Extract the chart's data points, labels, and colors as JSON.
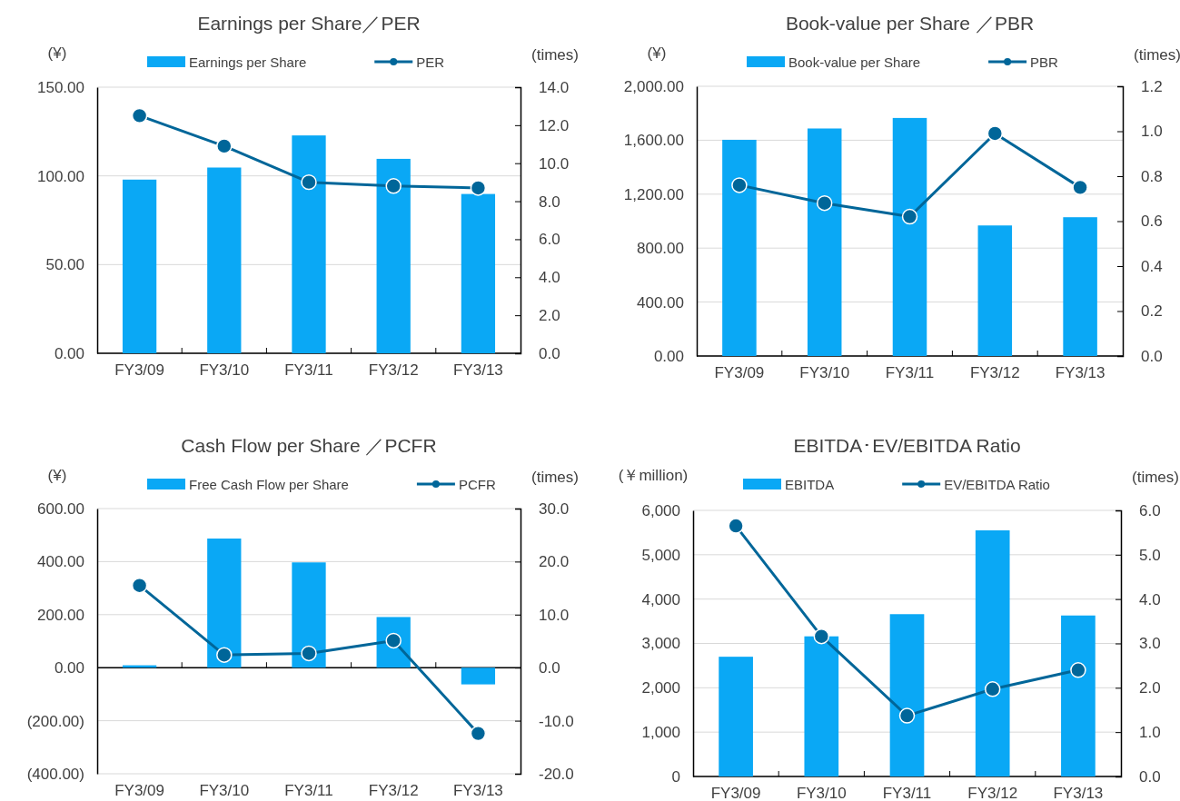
{
  "chart_data": [
    {
      "type": "bar",
      "title": "Earnings per Share／PER",
      "ylabel": "(¥)",
      "y2label": "(times)",
      "categories": [
        "FY3/09",
        "FY3/10",
        "FY3/11",
        "FY3/12",
        "FY3/13"
      ],
      "series": [
        {
          "name": "Earnings per Share",
          "color": "#0aa8f5",
          "values": [
            97.9,
            104.7,
            122.8,
            109.6,
            89.8
          ]
        },
        {
          "name": "PER",
          "type": "line",
          "axis": "y2",
          "color": "#006699",
          "values": [
            12.5,
            10.9,
            9.0,
            8.8,
            8.7
          ]
        }
      ],
      "ylim": [
        0,
        150
      ],
      "yticks": [
        {
          "value": 0,
          "label": "0.00"
        },
        {
          "value": 50,
          "label": "50.00"
        },
        {
          "value": 100,
          "label": "100.00"
        },
        {
          "value": 150,
          "label": "150.00"
        }
      ],
      "y2lim": [
        0,
        14
      ],
      "y2ticks": [
        {
          "value": 0,
          "label": "0.0"
        },
        {
          "value": 2,
          "label": "2.0"
        },
        {
          "value": 4,
          "label": "4.0"
        },
        {
          "value": 6,
          "label": "6.0"
        },
        {
          "value": 8,
          "label": "8.0"
        },
        {
          "value": 10,
          "label": "10.0"
        },
        {
          "value": 12,
          "label": "12.0"
        },
        {
          "value": 14,
          "label": "14.0"
        }
      ],
      "grid": "y",
      "legend": "top",
      "marker": "circle"
    },
    {
      "type": "bar",
      "title": "Book-value per Share ／PBR",
      "ylabel": "(¥)",
      "y2label": "(times)",
      "categories": [
        "FY3/09",
        "FY3/10",
        "FY3/11",
        "FY3/12",
        "FY3/13"
      ],
      "series": [
        {
          "name": "Book-value per Share",
          "color": "#0aa8f5",
          "values": [
            1603,
            1687,
            1765,
            968,
            1029
          ]
        },
        {
          "name": "PBR",
          "type": "line",
          "axis": "y2",
          "color": "#006699",
          "values": [
            0.76,
            0.68,
            0.62,
            0.99,
            0.75
          ]
        }
      ],
      "ylim": [
        0,
        2000
      ],
      "yticks": [
        {
          "value": 0,
          "label": "0.00"
        },
        {
          "value": 400,
          "label": "400.00"
        },
        {
          "value": 800,
          "label": "800.00"
        },
        {
          "value": 1200,
          "label": "1,200.00"
        },
        {
          "value": 1600,
          "label": "1,600.00"
        },
        {
          "value": 2000,
          "label": "2,000.00"
        }
      ],
      "y2lim": [
        0,
        1.2
      ],
      "y2ticks": [
        {
          "value": 0,
          "label": "0.0"
        },
        0.2,
        0.4,
        0.6,
        0.8,
        {
          "value": 1,
          "label": "1.0"
        },
        1.2
      ],
      "grid": "y",
      "legend": "top",
      "marker": "circle"
    },
    {
      "type": "bar",
      "title": "Cash Flow per Share ／PCFR",
      "ylabel": "(¥)",
      "y2label": "(times)",
      "categories": [
        "FY3/09",
        "FY3/10",
        "FY3/11",
        "FY3/12",
        "FY3/13"
      ],
      "series": [
        {
          "name": "Free Cash Flow per Share",
          "color": "#0aa8f5",
          "values": [
            9,
            487,
            397,
            191,
            -63
          ]
        },
        {
          "name": "PCFR",
          "type": "line",
          "axis": "y2",
          "color": "#006699",
          "values": [
            15.5,
            2.4,
            2.7,
            5.1,
            -12.4
          ]
        }
      ],
      "ylim": [
        -400,
        600
      ],
      "yticks": [
        {
          "value": -400,
          "label": "(400.00)"
        },
        {
          "value": -200,
          "label": "(200.00)"
        },
        {
          "value": 0,
          "label": "0.00"
        },
        {
          "value": 200,
          "label": "200.00"
        },
        {
          "value": 400,
          "label": "400.00"
        },
        {
          "value": 600,
          "label": "600.00"
        }
      ],
      "y2lim": [
        -20,
        30
      ],
      "y2ticks": [
        {
          "value": -20,
          "label": "-20.0"
        },
        {
          "value": -10,
          "label": "-10.0"
        },
        {
          "value": 0,
          "label": "0.0"
        },
        {
          "value": 10,
          "label": "10.0"
        },
        {
          "value": 20,
          "label": "20.0"
        },
        {
          "value": 30,
          "label": "30.0"
        }
      ],
      "grid": "y",
      "legend": "top",
      "marker": "circle"
    },
    {
      "type": "bar",
      "title": "EBITDA･EV/EBITDA Ratio",
      "ylabel": "(￥million)",
      "y2label": "(times)",
      "categories": [
        "FY3/09",
        "FY3/10",
        "FY3/11",
        "FY3/12",
        "FY3/13"
      ],
      "series": [
        {
          "name": "EBITDA",
          "color": "#0aa8f5",
          "values": [
            2700,
            3160,
            3660,
            5550,
            3630
          ]
        },
        {
          "name": "EV/EBITDA Ratio",
          "type": "line",
          "axis": "y2",
          "color": "#006699",
          "values": [
            5.65,
            3.16,
            1.37,
            1.97,
            2.4
          ]
        }
      ],
      "ylim": [
        0,
        6000
      ],
      "yticks": [
        0,
        {
          "value": 1000,
          "label": "1,000"
        },
        {
          "value": 2000,
          "label": "2,000"
        },
        {
          "value": 3000,
          "label": "3,000"
        },
        {
          "value": 4000,
          "label": "4,000"
        },
        {
          "value": 5000,
          "label": "5,000"
        },
        {
          "value": 6000,
          "label": "6,000"
        }
      ],
      "y2lim": [
        0,
        6
      ],
      "y2ticks": [
        {
          "value": 0,
          "label": "0.0"
        },
        {
          "value": 1,
          "label": "1.0"
        },
        {
          "value": 2,
          "label": "2.0"
        },
        {
          "value": 3,
          "label": "3.0"
        },
        {
          "value": 4,
          "label": "4.0"
        },
        {
          "value": 5,
          "label": "5.0"
        },
        {
          "value": 6,
          "label": "6.0"
        }
      ],
      "grid": "y",
      "legend": "top",
      "marker": "circle"
    }
  ]
}
